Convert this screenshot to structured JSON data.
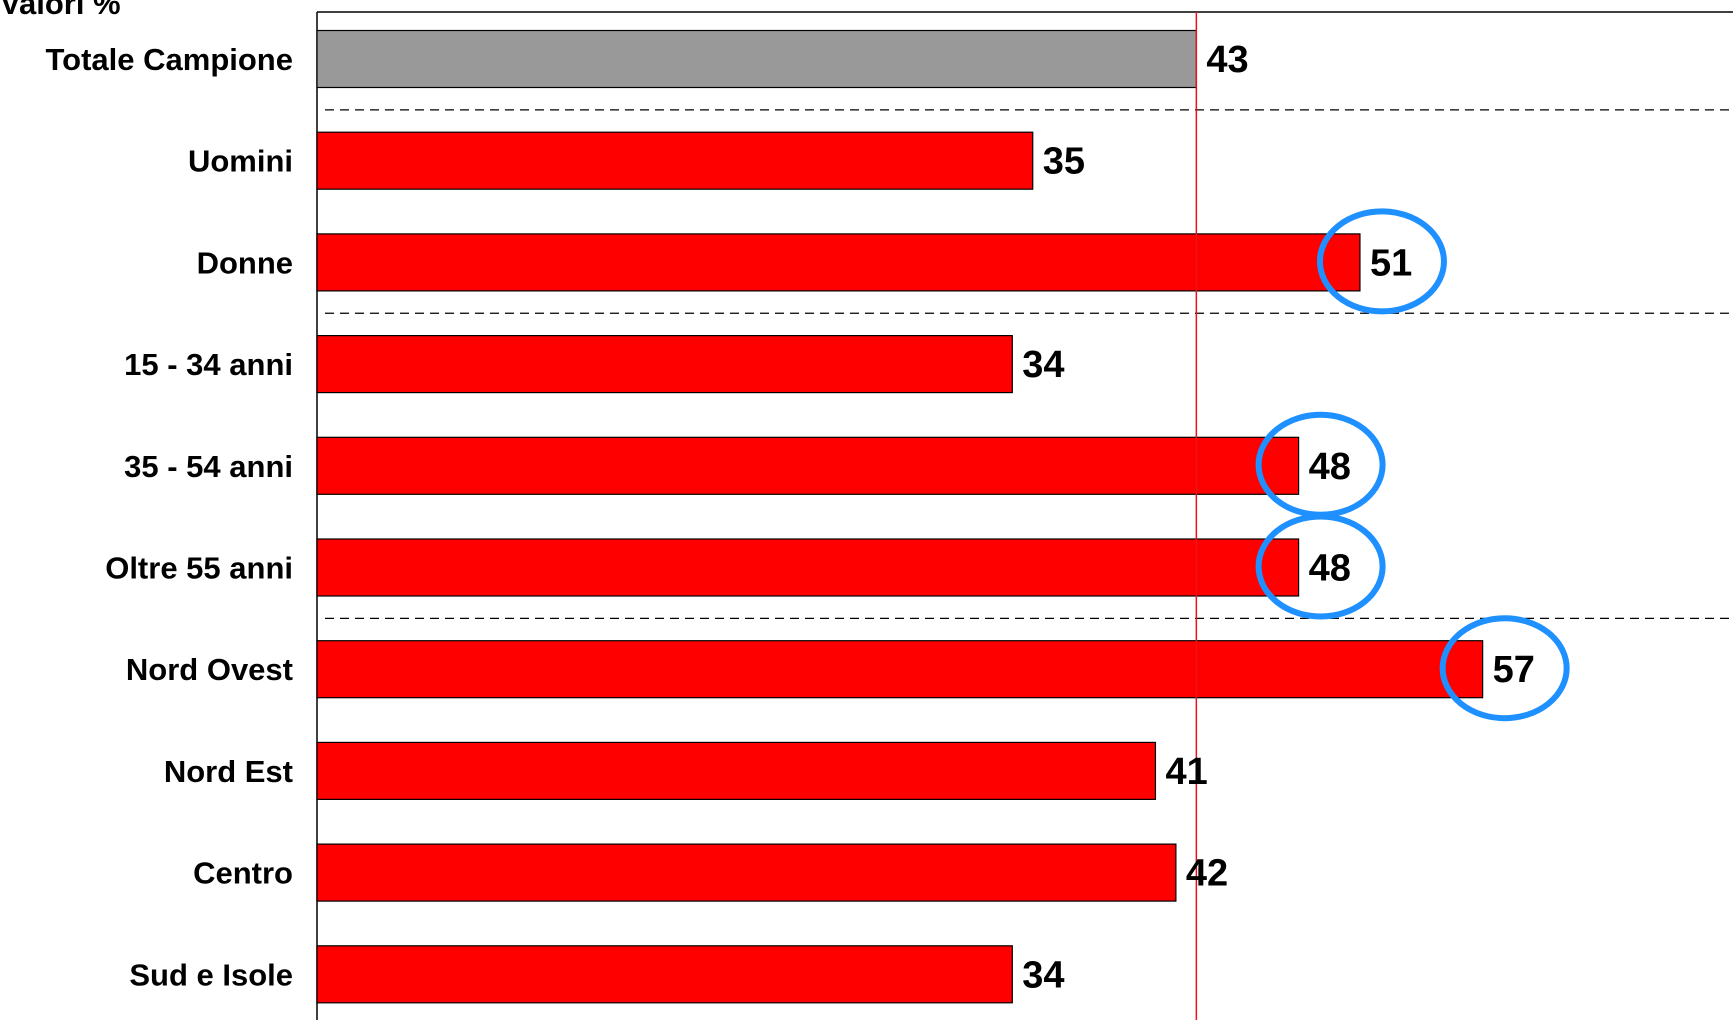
{
  "chart_data": {
    "type": "bar",
    "orientation": "horizontal",
    "unit_label": "Valori %",
    "categories": [
      "Totale Campione",
      "Uomini",
      "Donne",
      "15 - 34 anni",
      "35 - 54 anni",
      "Oltre 55 anni",
      "Nord Ovest",
      "Nord Est",
      "Centro",
      "Sud e Isole"
    ],
    "values": [
      43,
      35,
      51,
      34,
      48,
      48,
      57,
      41,
      42,
      34
    ],
    "xlim": [
      0,
      84
    ],
    "reference_line": {
      "value": 43,
      "color": "#e8121a"
    },
    "highlighted": [
      "Donne",
      "35 - 54 anni",
      "Oltre 55 anni",
      "Nord Ovest"
    ],
    "group_separators_after": [
      "Totale Campione",
      "Donne",
      "Oltre 55 anni"
    ],
    "colors": {
      "total_bar": "#999999",
      "bar": "#ff0000",
      "highlight_circle": "#1e90ff",
      "reference_line": "#e8121a"
    },
    "grid": false,
    "legend": "none"
  }
}
